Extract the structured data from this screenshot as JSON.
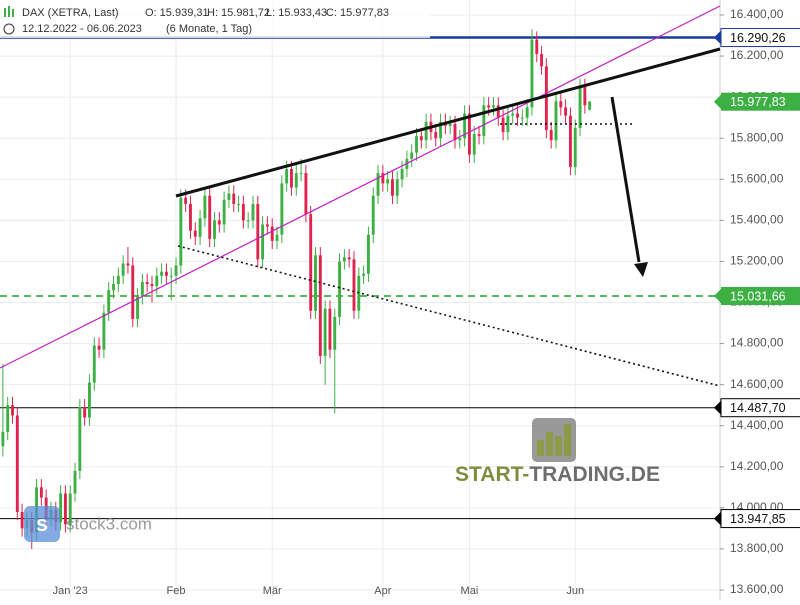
{
  "chart_data": {
    "type": "candlestick",
    "title": "DAX (XETRA, Last)",
    "header_values": [
      "O: 15.939,31",
      "H: 15.981,72",
      "L: 15.933,43",
      "C: 15.977,83"
    ],
    "period": "12.12.2022 - 06.06.2023",
    "period_note": "(6 Monate, 1 Tag)",
    "watermarks": [
      "START-",
      "TRADING.DE",
      "stock3.com"
    ],
    "up_color": "#3cb043",
    "down_color": "#e0234e",
    "grid": true,
    "xlim": [
      -0.6,
      149.1
    ],
    "xticks": [
      {
        "value": 14,
        "label": "Jan '23"
      },
      {
        "value": 36,
        "label": "Feb"
      },
      {
        "value": 56,
        "label": "Mär"
      },
      {
        "value": 79,
        "label": "Apr"
      },
      {
        "value": 97,
        "label": "Mai"
      },
      {
        "value": 119,
        "label": "Jun"
      }
    ],
    "ylim": [
      13600,
      16400
    ],
    "yticks": [
      {
        "value": 13600,
        "label": "13.600,00"
      },
      {
        "value": 13800,
        "label": "13.800,00"
      },
      {
        "value": 14000,
        "label": "14.000,00"
      },
      {
        "value": 14200,
        "label": "14.200,00"
      },
      {
        "value": 14400,
        "label": "14.400,00"
      },
      {
        "value": 14600,
        "label": "14.600,00"
      },
      {
        "value": 14800,
        "label": "14.800,00"
      },
      {
        "value": 15000,
        "label": "15.000,00"
      },
      {
        "value": 15200,
        "label": "15.200,00"
      },
      {
        "value": 15400,
        "label": "15.400,00"
      },
      {
        "value": 15600,
        "label": "15.600,00"
      },
      {
        "value": 15800,
        "label": "15.800,00"
      },
      {
        "value": 16000,
        "label": "16.000,00"
      },
      {
        "value": 16200,
        "label": "16.200,00"
      },
      {
        "value": 16400,
        "label": "16.400,00"
      }
    ],
    "levels": [
      {
        "value": 16290.26,
        "label": "16.290,26",
        "color": "#1a3a9c",
        "style": "solid",
        "tag": "outline"
      },
      {
        "value": 15977.83,
        "label": "15.977,83",
        "color": "#3cb043",
        "style": "none",
        "tag": "filled"
      },
      {
        "value": 15031.66,
        "label": "15.031,66",
        "color": "#3cb043",
        "style": "dashed",
        "tag": "filled"
      },
      {
        "value": 14487.7,
        "label": "14.487,70",
        "color": "#000000",
        "style": "solid",
        "tag": "outline"
      },
      {
        "value": 13947.85,
        "label": "13.947,85",
        "color": "#000000",
        "style": "solid",
        "tag": "outline"
      }
    ],
    "ohlc": [
      [
        14300,
        14700,
        14250,
        14370
      ],
      [
        14370,
        14540,
        14330,
        14500
      ],
      [
        14500,
        14540,
        14410,
        14450
      ],
      [
        14450,
        14490,
        13940,
        13980
      ],
      [
        13980,
        14020,
        13860,
        13900
      ],
      [
        13900,
        13980,
        13860,
        13940
      ],
      [
        13940,
        13980,
        13800,
        13880
      ],
      [
        13880,
        14140,
        13840,
        14100
      ],
      [
        14100,
        14140,
        14010,
        14050
      ],
      [
        14050,
        14090,
        13910,
        13950
      ],
      [
        13950,
        14030,
        13910,
        13990
      ],
      [
        13990,
        14030,
        13890,
        13930
      ],
      [
        13930,
        14110,
        13890,
        14070
      ],
      [
        14070,
        14110,
        13880,
        13920
      ],
      [
        13920,
        14110,
        13880,
        14070
      ],
      [
        14070,
        14220,
        14030,
        14180
      ],
      [
        14180,
        14530,
        14140,
        14490
      ],
      [
        14490,
        14530,
        14400,
        14440
      ],
      [
        14440,
        14650,
        14400,
        14610
      ],
      [
        14610,
        14830,
        14570,
        14790
      ],
      [
        14790,
        14830,
        14730,
        14770
      ],
      [
        14770,
        14990,
        14730,
        14950
      ],
      [
        14950,
        15100,
        14910,
        15060
      ],
      [
        15060,
        15130,
        15020,
        15090
      ],
      [
        15090,
        15170,
        15050,
        15130
      ],
      [
        15130,
        15230,
        15090,
        15190
      ],
      [
        15190,
        15270,
        15140,
        15180
      ],
      [
        15180,
        15220,
        14880,
        14920
      ],
      [
        14920,
        15070,
        14880,
        15030
      ],
      [
        15030,
        15140,
        14990,
        15100
      ],
      [
        15100,
        15140,
        15050,
        15090
      ],
      [
        15090,
        15130,
        15000,
        15080
      ],
      [
        15080,
        15170,
        15040,
        15130
      ],
      [
        15130,
        15190,
        15090,
        15150
      ],
      [
        15150,
        15190,
        15090,
        15130
      ],
      [
        15130,
        15170,
        15010,
        15130
      ],
      [
        15130,
        15220,
        15090,
        15180
      ],
      [
        15180,
        15550,
        15140,
        15510
      ],
      [
        15510,
        15550,
        15440,
        15480
      ],
      [
        15480,
        15520,
        15310,
        15350
      ],
      [
        15350,
        15390,
        15280,
        15320
      ],
      [
        15320,
        15450,
        15280,
        15410
      ],
      [
        15410,
        15560,
        15370,
        15520
      ],
      [
        15520,
        15560,
        15270,
        15310
      ],
      [
        15310,
        15440,
        15270,
        15400
      ],
      [
        15400,
        15440,
        15340,
        15380
      ],
      [
        15380,
        15540,
        15340,
        15500
      ],
      [
        15500,
        15570,
        15460,
        15530
      ],
      [
        15530,
        15570,
        15440,
        15480
      ],
      [
        15480,
        15520,
        15440,
        15480
      ],
      [
        15480,
        15520,
        15360,
        15400
      ],
      [
        15400,
        15440,
        15360,
        15400
      ],
      [
        15400,
        15520,
        15360,
        15480
      ],
      [
        15480,
        15520,
        15170,
        15210
      ],
      [
        15210,
        15420,
        15170,
        15380
      ],
      [
        15380,
        15420,
        15330,
        15370
      ],
      [
        15370,
        15410,
        15260,
        15300
      ],
      [
        15300,
        15370,
        15260,
        15330
      ],
      [
        15330,
        15620,
        15290,
        15580
      ],
      [
        15580,
        15690,
        15540,
        15650
      ],
      [
        15650,
        15690,
        15520,
        15560
      ],
      [
        15560,
        15670,
        15520,
        15630
      ],
      [
        15630,
        15700,
        15590,
        15630
      ],
      [
        15630,
        15670,
        15390,
        15430
      ],
      [
        15430,
        15470,
        14920,
        14960
      ],
      [
        14960,
        15270,
        14920,
        15230
      ],
      [
        15230,
        15270,
        14700,
        14740
      ],
      [
        14740,
        15010,
        14600,
        14970
      ],
      [
        14970,
        15010,
        14730,
        14770
      ],
      [
        14770,
        14970,
        14460,
        14930
      ],
      [
        14930,
        15240,
        14890,
        15200
      ],
      [
        15200,
        15260,
        15160,
        15220
      ],
      [
        15220,
        15260,
        15170,
        15210
      ],
      [
        15210,
        15250,
        14920,
        14960
      ],
      [
        14960,
        15170,
        14920,
        15130
      ],
      [
        15130,
        15180,
        15090,
        15140
      ],
      [
        15140,
        15370,
        15100,
        15330
      ],
      [
        15330,
        15560,
        15290,
        15520
      ],
      [
        15520,
        15670,
        15480,
        15630
      ],
      [
        15630,
        15670,
        15540,
        15580
      ],
      [
        15580,
        15640,
        15540,
        15600
      ],
      [
        15600,
        15640,
        15480,
        15520
      ],
      [
        15520,
        15640,
        15480,
        15600
      ],
      [
        15600,
        15690,
        15560,
        15650
      ],
      [
        15650,
        15740,
        15610,
        15700
      ],
      [
        15700,
        15770,
        15660,
        15730
      ],
      [
        15730,
        15850,
        15690,
        15810
      ],
      [
        15810,
        15850,
        15750,
        15790
      ],
      [
        15790,
        15920,
        15750,
        15880
      ],
      [
        15880,
        15920,
        15790,
        15830
      ],
      [
        15830,
        15870,
        15760,
        15800
      ],
      [
        15800,
        15920,
        15760,
        15880
      ],
      [
        15880,
        15920,
        15820,
        15860
      ],
      [
        15860,
        15910,
        15820,
        15870
      ],
      [
        15870,
        15910,
        15750,
        15790
      ],
      [
        15790,
        15840,
        15750,
        15800
      ],
      [
        15800,
        15960,
        15760,
        15920
      ],
      [
        15920,
        15960,
        15680,
        15720
      ],
      [
        15720,
        15860,
        15680,
        15820
      ],
      [
        15820,
        15860,
        15770,
        15810
      ],
      [
        15810,
        16000,
        15770,
        15960
      ],
      [
        15960,
        16000,
        15910,
        15950
      ],
      [
        15950,
        16000,
        15910,
        15960
      ],
      [
        15960,
        16000,
        15860,
        15900
      ],
      [
        15900,
        15940,
        15790,
        15830
      ],
      [
        15830,
        15950,
        15790,
        15910
      ],
      [
        15910,
        15960,
        15870,
        15920
      ],
      [
        15920,
        15960,
        15860,
        15900
      ],
      [
        15900,
        15940,
        15860,
        15900
      ],
      [
        15900,
        15990,
        15860,
        15950
      ],
      [
        15950,
        16330,
        15910,
        16280
      ],
      [
        16280,
        16320,
        16170,
        16210
      ],
      [
        16210,
        16250,
        16110,
        16150
      ],
      [
        16150,
        16190,
        15800,
        15840
      ],
      [
        15840,
        15880,
        15750,
        15790
      ],
      [
        15790,
        16020,
        15750,
        15980
      ],
      [
        15980,
        16020,
        15910,
        15950
      ],
      [
        15950,
        15990,
        15870,
        15910
      ],
      [
        15910,
        15950,
        15620,
        15660
      ],
      [
        15660,
        15890,
        15620,
        15850
      ],
      [
        15850,
        16090,
        15810,
        16050
      ],
      [
        16050,
        16090,
        15920,
        15960
      ],
      [
        15939.31,
        15981.72,
        15933.43,
        15977.83
      ]
    ]
  }
}
